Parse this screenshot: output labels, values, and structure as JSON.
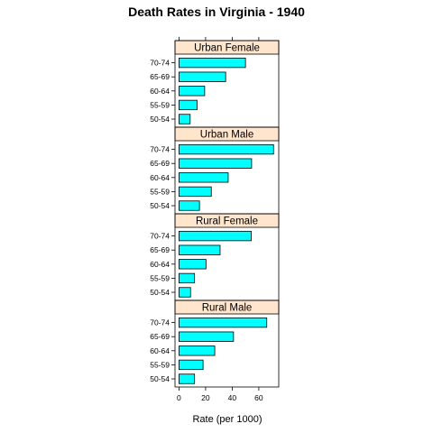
{
  "chart_data": {
    "type": "bar",
    "orientation": "horizontal",
    "title": "Death Rates in Virginia - 1940",
    "xlabel": "Rate (per 1000)",
    "xlim": [
      -3,
      75
    ],
    "xticks": [
      0,
      20,
      40,
      60
    ],
    "categories": [
      "50-54",
      "55-59",
      "60-64",
      "65-69",
      "70-74"
    ],
    "panels": [
      {
        "name": "Urban Female",
        "values": [
          8.4,
          13.6,
          19.3,
          35.1,
          50.0
        ]
      },
      {
        "name": "Urban Male",
        "values": [
          15.4,
          24.3,
          37.0,
          54.6,
          71.1
        ]
      },
      {
        "name": "Rural Female",
        "values": [
          8.7,
          11.7,
          20.3,
          30.9,
          54.3
        ]
      },
      {
        "name": "Rural Male",
        "values": [
          11.7,
          18.1,
          26.9,
          41.0,
          66.0
        ]
      }
    ],
    "colors": {
      "bar_fill": "#00ffff",
      "bar_stroke": "#000000",
      "strip_fill": "#ffe5cc"
    },
    "grid": false,
    "legend": "none"
  }
}
